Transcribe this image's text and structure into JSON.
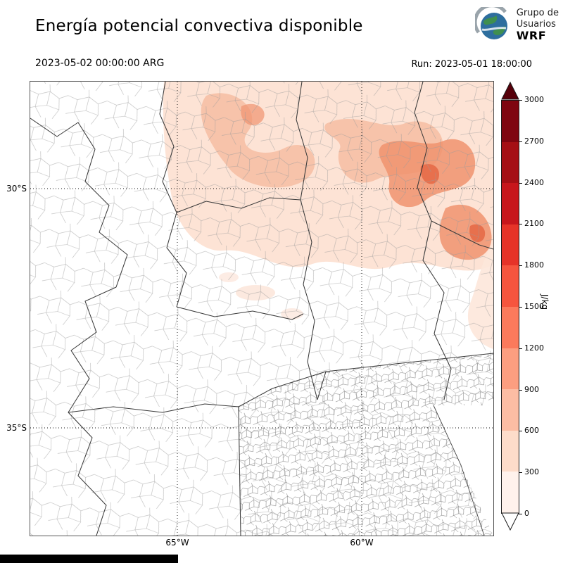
{
  "header": {
    "title": "Energía potencial convectiva disponible",
    "logo": {
      "line1": "Grupo de",
      "line2": "Usuarios",
      "line3": "WRF"
    }
  },
  "subheader": {
    "valid_time": "2023-05-02 00:00:00 ARG",
    "run_time": "Run: 2023-05-01 18:00:00"
  },
  "map": {
    "y_tick_labels": [
      "30°S",
      "35°S"
    ],
    "x_tick_labels": [
      "65°W",
      "60°W"
    ]
  },
  "colorbar": {
    "unit": "J/kg",
    "tick_labels_top_to_bottom": [
      "3000",
      "2700",
      "2400",
      "2100",
      "1800",
      "1500",
      "1200",
      "900",
      "600",
      "300",
      "0"
    ],
    "colors_top_to_bottom": [
      "#7f0510",
      "#a50f15",
      "#c7161c",
      "#e63328",
      "#f6553e",
      "#fb7a5c",
      "#fc9e80",
      "#fcbda4",
      "#fddcca",
      "#fff2ec"
    ],
    "extend_over_color": "#56000a",
    "extend_under_color": "#ffffff"
  },
  "chart_data": {
    "type": "heatmap",
    "title": "Energía potencial convectiva disponible",
    "value_unit": "J/kg",
    "colorbar_ticks": [
      0,
      300,
      600,
      900,
      1200,
      1500,
      1800,
      2100,
      2400,
      2700,
      3000
    ],
    "x_axis_ticks": [
      "65°W",
      "60°W"
    ],
    "y_axis_ticks": [
      "30°S",
      "35°S"
    ],
    "valid_time": "2023-05-02 00:00:00 ARG",
    "model_run": "2023-05-01 18:00:00",
    "pattern": "CAPE shading confined to the northern third of the map; light values (≈100–300 J/kg) spread across the north-center, strongest patches (≈600–1200 J/kg) in the northeast near 28–30°S / 58–60°W, zero over the center, west and south"
  }
}
